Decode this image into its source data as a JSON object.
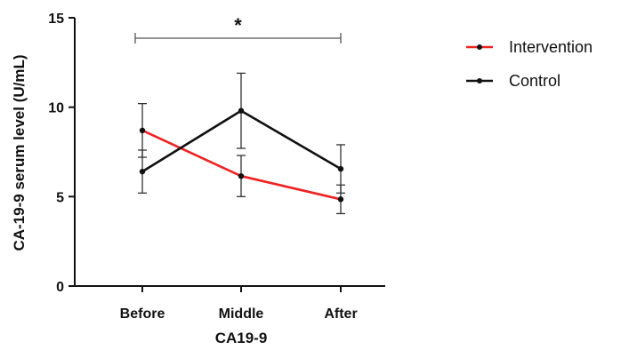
{
  "chart_data": {
    "type": "line",
    "xlabel": "CA19-9",
    "ylabel": "CA-19-9 serum level (U/mL)",
    "categories": [
      "Before",
      "Middle",
      "After"
    ],
    "ylim": [
      0,
      15
    ],
    "yticks": [
      0,
      5,
      10,
      15
    ],
    "series": [
      {
        "name": "Intervention",
        "color": "#ee2222",
        "values": [
          8.7,
          6.15,
          4.85
        ],
        "error": [
          1.5,
          1.15,
          0.8
        ]
      },
      {
        "name": "Control",
        "color": "#111111",
        "values": [
          6.4,
          9.8,
          6.55
        ],
        "error": [
          1.2,
          2.1,
          1.35
        ]
      }
    ],
    "significance": {
      "from": "Before",
      "to": "After",
      "label": "*"
    },
    "legend_position": "top-right"
  }
}
